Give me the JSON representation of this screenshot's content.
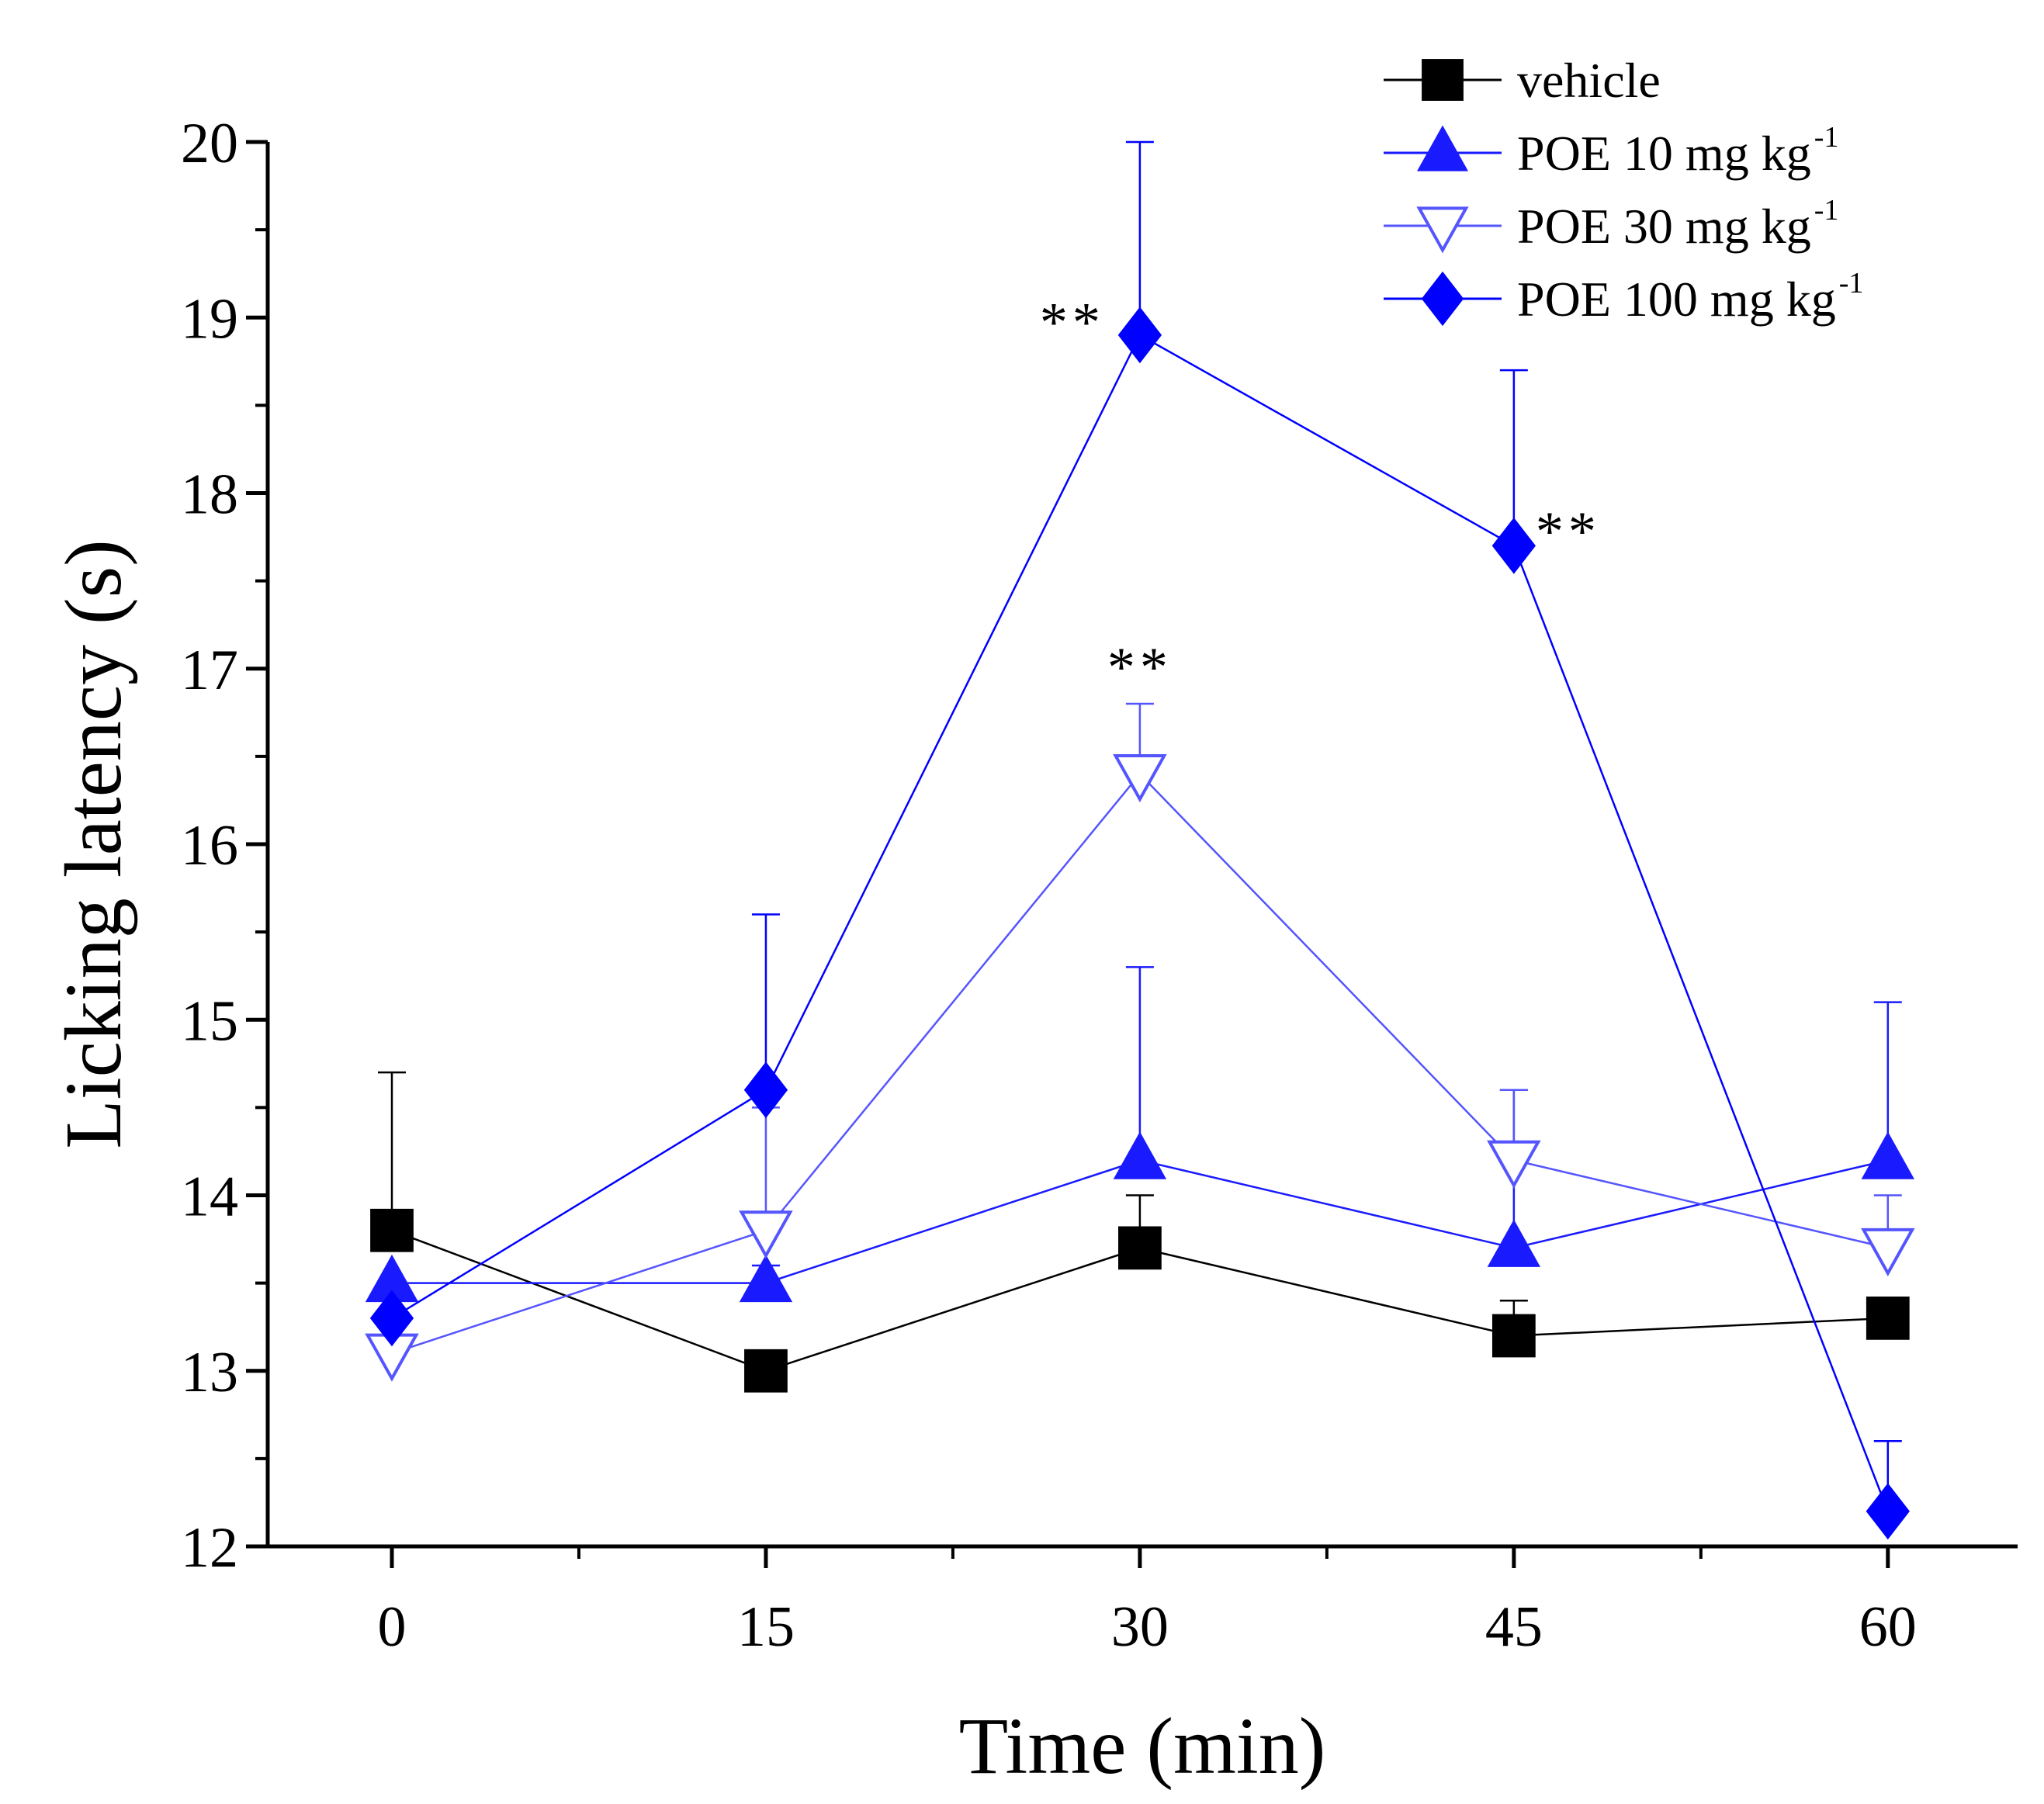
{
  "chart_data": {
    "type": "line",
    "title": "",
    "xlabel": "Time (min)",
    "ylabel": "Licking latency (s)",
    "x": [
      0,
      15,
      30,
      45,
      60
    ],
    "x_tick_labels": [
      "0",
      "15",
      "30",
      "45",
      "60"
    ],
    "xlim": [
      -5,
      65
    ],
    "ylim": [
      12,
      20
    ],
    "y_ticks": [
      12,
      13,
      14,
      15,
      16,
      17,
      18,
      19,
      20
    ],
    "y_tick_labels": [
      "12",
      "13",
      "14",
      "15",
      "16",
      "17",
      "18",
      "19",
      "20"
    ],
    "grid": false,
    "legend_position": "top-right",
    "series": [
      {
        "name": "vehicle",
        "legend_text": "vehicle",
        "legend_sup": "",
        "values": [
          13.8,
          13.0,
          13.7,
          13.2,
          13.3
        ],
        "error_upper": [
          14.7,
          13.0,
          14.0,
          13.4,
          13.3
        ],
        "color": "#000000",
        "marker": "square-filled"
      },
      {
        "name": "POE 10 mg kg-1",
        "legend_text": "POE 10 mg kg",
        "legend_sup": "-1",
        "values": [
          13.5,
          13.5,
          14.2,
          13.7,
          14.2
        ],
        "error_upper": [
          13.5,
          13.6,
          15.3,
          14.6,
          15.1
        ],
        "color": "#1a1aff",
        "marker": "triangle-up-filled"
      },
      {
        "name": "POE 30 mg kg-1",
        "legend_text": "POE 30 mg kg",
        "legend_sup": "-1",
        "values": [
          13.1,
          13.8,
          16.4,
          14.2,
          13.7
        ],
        "error_upper": [
          13.1,
          14.5,
          16.8,
          14.6,
          14.0
        ],
        "color": "#5555ff",
        "marker": "triangle-down-open"
      },
      {
        "name": "POE 100 mg kg-1",
        "legend_text": "POE 100 mg kg",
        "legend_sup": "-1",
        "values": [
          13.3,
          14.6,
          18.9,
          17.7,
          12.2
        ],
        "error_upper": [
          13.3,
          15.6,
          20.0,
          18.7,
          12.6
        ],
        "color": "#0000ff",
        "marker": "diamond-filled"
      }
    ],
    "annotations": [
      {
        "text": "**",
        "x": 30,
        "y": 19.0,
        "anchor": "left-of-point"
      },
      {
        "text": "**",
        "x": 45,
        "y": 17.8,
        "anchor": "right-of-point"
      },
      {
        "text": "**",
        "x": 30,
        "y": 17.0,
        "anchor": "above-point"
      }
    ]
  }
}
